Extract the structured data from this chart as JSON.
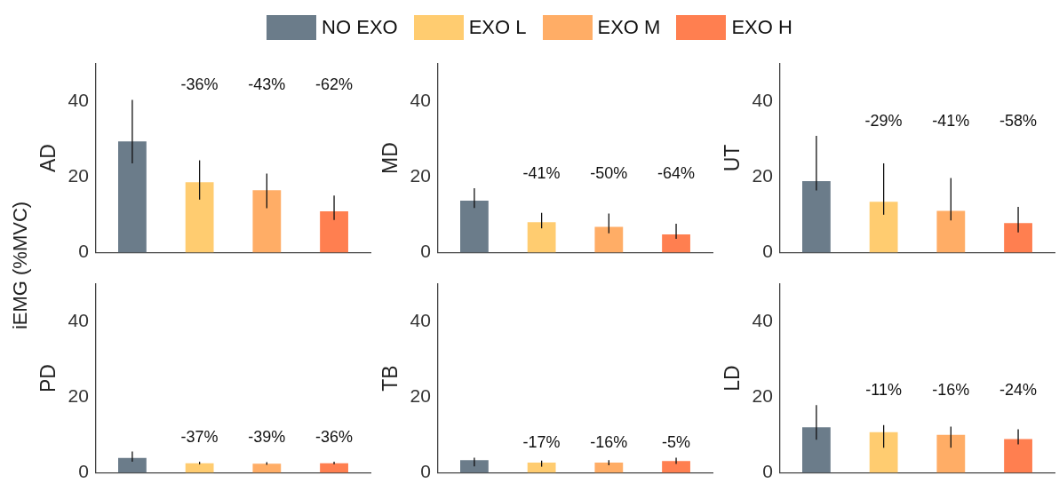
{
  "chart_data": [
    {
      "type": "bar",
      "ylabel": "AD",
      "legend": "top",
      "categories": [
        null
      ],
      "ylim": [
        0,
        50
      ],
      "yticks": [
        0,
        20,
        40
      ],
      "tick_labels": "y",
      "annotations": [
        "iEMG (%MVC)",
        "-36%",
        "-43%",
        "-62%"
      ],
      "series": [
        {
          "name": "NO EXO",
          "color": "#6b7c8a",
          "values": [
            29.4
          ],
          "errors": [
            [
              23.6,
              40.4
            ]
          ]
        },
        {
          "name": "EXO L",
          "color": "#ffcc70",
          "values": [
            18.6
          ],
          "errors": [
            [
              14.0,
              24.4
            ]
          ]
        },
        {
          "name": "EXO M",
          "color": "#ffad66",
          "values": [
            16.5
          ],
          "errors": [
            [
              11.7,
              20.9
            ]
          ]
        },
        {
          "name": "EXO H",
          "color": "#ff7f50",
          "values": [
            10.9
          ],
          "errors": [
            [
              8.6,
              15.1
            ]
          ]
        }
      ]
    },
    {
      "type": "bar",
      "ylabel": "MD",
      "categories": [
        null
      ],
      "ylim": [
        0,
        50
      ],
      "yticks": [
        0,
        20,
        40
      ],
      "tick_labels": "y",
      "annotations": [
        "-41%",
        "-50%",
        "-64%"
      ],
      "series": [
        {
          "color": "#6b7c8a",
          "values": [
            13.7
          ],
          "errors": [
            [
              11.8,
              17.0
            ]
          ]
        },
        {
          "color": "#ffcc70",
          "values": [
            8.0
          ],
          "errors": [
            [
              6.4,
              10.5
            ]
          ]
        },
        {
          "color": "#ffad66",
          "values": [
            6.8
          ],
          "errors": [
            [
              5.1,
              10.3
            ]
          ]
        },
        {
          "color": "#ff7f50",
          "values": [
            4.8
          ],
          "errors": [
            [
              3.6,
              7.6
            ]
          ]
        }
      ]
    },
    {
      "type": "bar",
      "ylabel": "UT",
      "categories": [
        null
      ],
      "ylim": [
        0,
        50
      ],
      "yticks": [
        0,
        20,
        40
      ],
      "tick_labels": "y",
      "annotations": [
        "-29%",
        "-41%",
        "-58%"
      ],
      "series": [
        {
          "color": "#6b7c8a",
          "values": [
            18.9
          ],
          "errors": [
            [
              16.4,
              30.9
            ]
          ]
        },
        {
          "color": "#ffcc70",
          "values": [
            13.4
          ],
          "errors": [
            [
              10.0,
              23.6
            ]
          ]
        },
        {
          "color": "#ffad66",
          "values": [
            11.0
          ],
          "errors": [
            [
              8.5,
              19.7
            ]
          ]
        },
        {
          "color": "#ff7f50",
          "values": [
            7.8
          ],
          "errors": [
            [
              5.3,
              12.1
            ]
          ]
        }
      ]
    },
    {
      "type": "bar",
      "ylabel": "PD",
      "categories": [
        null
      ],
      "ylim": [
        0,
        50
      ],
      "yticks": [
        0,
        20,
        40
      ],
      "tick_labels": "y",
      "annotations": [
        "-37%",
        "-39%",
        "-36%"
      ],
      "series": [
        {
          "color": "#6b7c8a",
          "values": [
            3.9
          ],
          "errors": [
            [
              2.9,
              5.6
            ]
          ]
        },
        {
          "color": "#ffcc70",
          "values": [
            2.5
          ],
          "errors": [
            [
              2.2,
              2.9
            ]
          ]
        },
        {
          "color": "#ffad66",
          "values": [
            2.4
          ],
          "errors": [
            [
              2.1,
              2.8
            ]
          ]
        },
        {
          "color": "#ff7f50",
          "values": [
            2.5
          ],
          "errors": [
            [
              2.2,
              2.9
            ]
          ]
        }
      ]
    },
    {
      "type": "bar",
      "ylabel": "TB",
      "categories": [
        null
      ],
      "ylim": [
        0,
        50
      ],
      "yticks": [
        0,
        20,
        40
      ],
      "tick_labels": "y",
      "annotations": [
        "-17%",
        "-16%",
        "-5%"
      ],
      "series": [
        {
          "color": "#6b7c8a",
          "values": [
            3.3
          ],
          "errors": [
            [
              1.7,
              4.0
            ]
          ]
        },
        {
          "color": "#ffcc70",
          "values": [
            2.7
          ],
          "errors": [
            [
              1.6,
              3.2
            ]
          ]
        },
        {
          "color": "#ffad66",
          "values": [
            2.7
          ],
          "errors": [
            [
              2.0,
              3.3
            ]
          ]
        },
        {
          "color": "#ff7f50",
          "values": [
            3.1
          ],
          "errors": [
            [
              2.3,
              4.0
            ]
          ]
        }
      ]
    },
    {
      "type": "bar",
      "ylabel": "LD",
      "categories": [
        null
      ],
      "ylim": [
        0,
        50
      ],
      "yticks": [
        0,
        20,
        40
      ],
      "tick_labels": "y",
      "annotations": [
        "-11%",
        "-16%",
        "-24%"
      ],
      "series": [
        {
          "color": "#6b7c8a",
          "values": [
            12.0
          ],
          "errors": [
            [
              8.7,
              17.9
            ]
          ]
        },
        {
          "color": "#ffcc70",
          "values": [
            10.7
          ],
          "errors": [
            [
              6.6,
              12.6
            ]
          ]
        },
        {
          "color": "#ffad66",
          "values": [
            10.0
          ],
          "errors": [
            [
              6.6,
              12.2
            ]
          ]
        },
        {
          "color": "#ff7f50",
          "values": [
            8.9
          ],
          "errors": [
            [
              7.5,
              11.5
            ]
          ]
        }
      ]
    }
  ]
}
